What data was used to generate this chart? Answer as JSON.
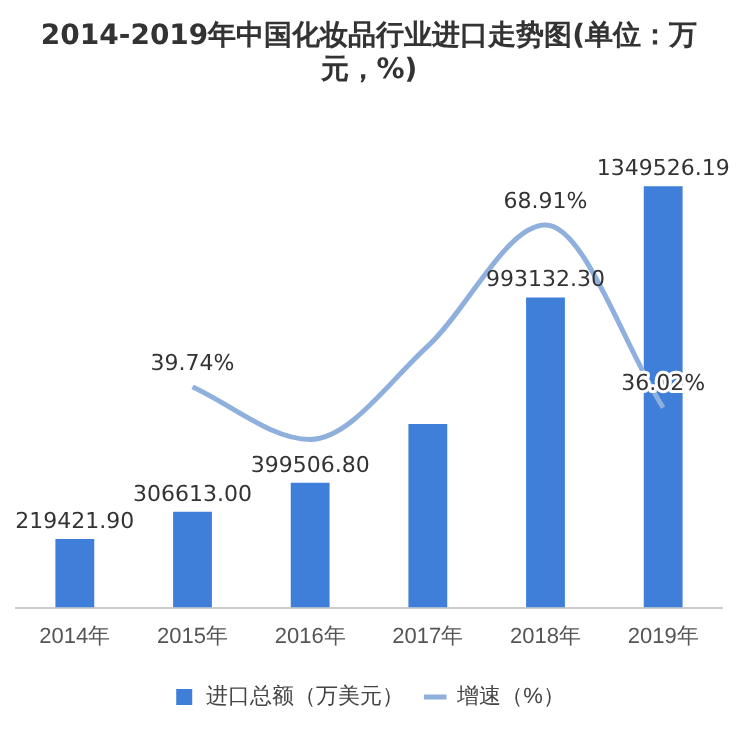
{
  "chart_data": {
    "type": "bar",
    "title": "2014-2019年中国化妆品行业进口走势图(单位：万元，%)",
    "categories": [
      "2014年",
      "2015年",
      "2016年",
      "2017年",
      "2018年",
      "2019年"
    ],
    "series": [
      {
        "name": "进口总额（万美元）",
        "type": "bar",
        "color": "#3f7fd9",
        "values": [
          219421.9,
          306613.0,
          399506.8,
          587652.6,
          993132.3,
          1349526.19
        ],
        "value_labels": [
          "219421.90",
          "306613.00",
          "399506.80",
          null,
          "993132.30",
          "1349526.19"
        ]
      },
      {
        "name": "增速（%）",
        "type": "line",
        "axis": "y2",
        "color": "#8fb0dc",
        "values": [
          null,
          39.74,
          30.3,
          47.1,
          68.91,
          36.02
        ],
        "value_labels": [
          null,
          "39.74%",
          null,
          null,
          "68.91%",
          "36.02%"
        ]
      }
    ],
    "tick_labels": "x",
    "grid": false,
    "legend": "bottom",
    "marker": "none",
    "line_style": "solid"
  }
}
